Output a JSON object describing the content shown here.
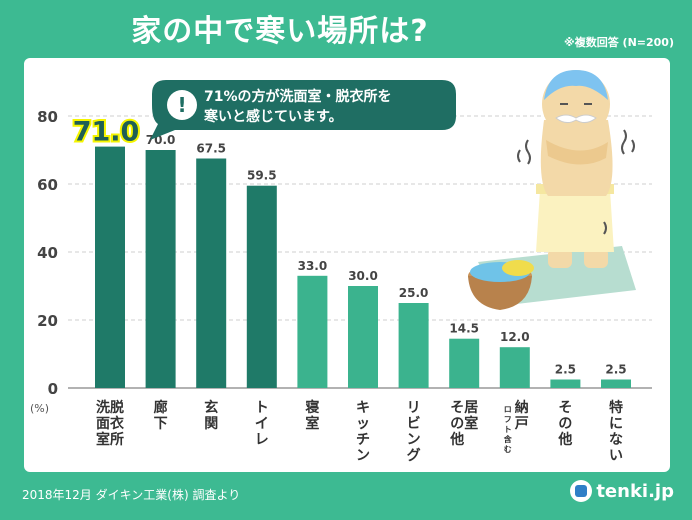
{
  "title": "家の中で寒い場所は?",
  "note": "※複数回答 (N=200)",
  "footer": "2018年12月 ダイキン工業(株) 調査より",
  "logo": "tenki.jp",
  "callout": {
    "line1": "71%の方が洗面室・脱衣所を",
    "line2": "寒いと感じています。",
    "highlight": "71.0"
  },
  "colors": {
    "background": "#3dba92",
    "bar": "#3bb38e",
    "bar_highlight": "#1f7a68",
    "highlight_text": "#f5f500"
  },
  "chart_data": {
    "type": "bar",
    "title": "家の中で寒い場所は?",
    "ylabel": "(%)",
    "xlabel": "",
    "ylim": [
      0,
      80
    ],
    "yticks": [
      0,
      20,
      40,
      60,
      80
    ],
    "grid": true,
    "categories": [
      "脱衣所洗面室",
      "廊下",
      "玄関",
      "トイレ",
      "寝室",
      "キッチン",
      "リビング",
      "居室その他",
      "納戸(ロフト含む)",
      "その他",
      "特にない"
    ],
    "category_lines": [
      [
        "脱衣所",
        "洗面室"
      ],
      [
        "廊下"
      ],
      [
        "玄関"
      ],
      [
        "トイレ"
      ],
      [
        "寝室"
      ],
      [
        "キッチン"
      ],
      [
        "リビング"
      ],
      [
        "居室",
        "その他"
      ],
      [
        "納戸",
        "(ロフト含む)"
      ],
      [
        "その他"
      ],
      [
        "特にない"
      ]
    ],
    "values": [
      71.0,
      70.0,
      67.5,
      59.5,
      33.0,
      30.0,
      25.0,
      14.5,
      12.0,
      2.5,
      2.5
    ],
    "labels": [
      "71.0",
      "70.0",
      "67.5",
      "59.5",
      "33.0",
      "30.0",
      "25.0",
      "14.5",
      "12.0",
      "2.5",
      "2.5"
    ]
  }
}
